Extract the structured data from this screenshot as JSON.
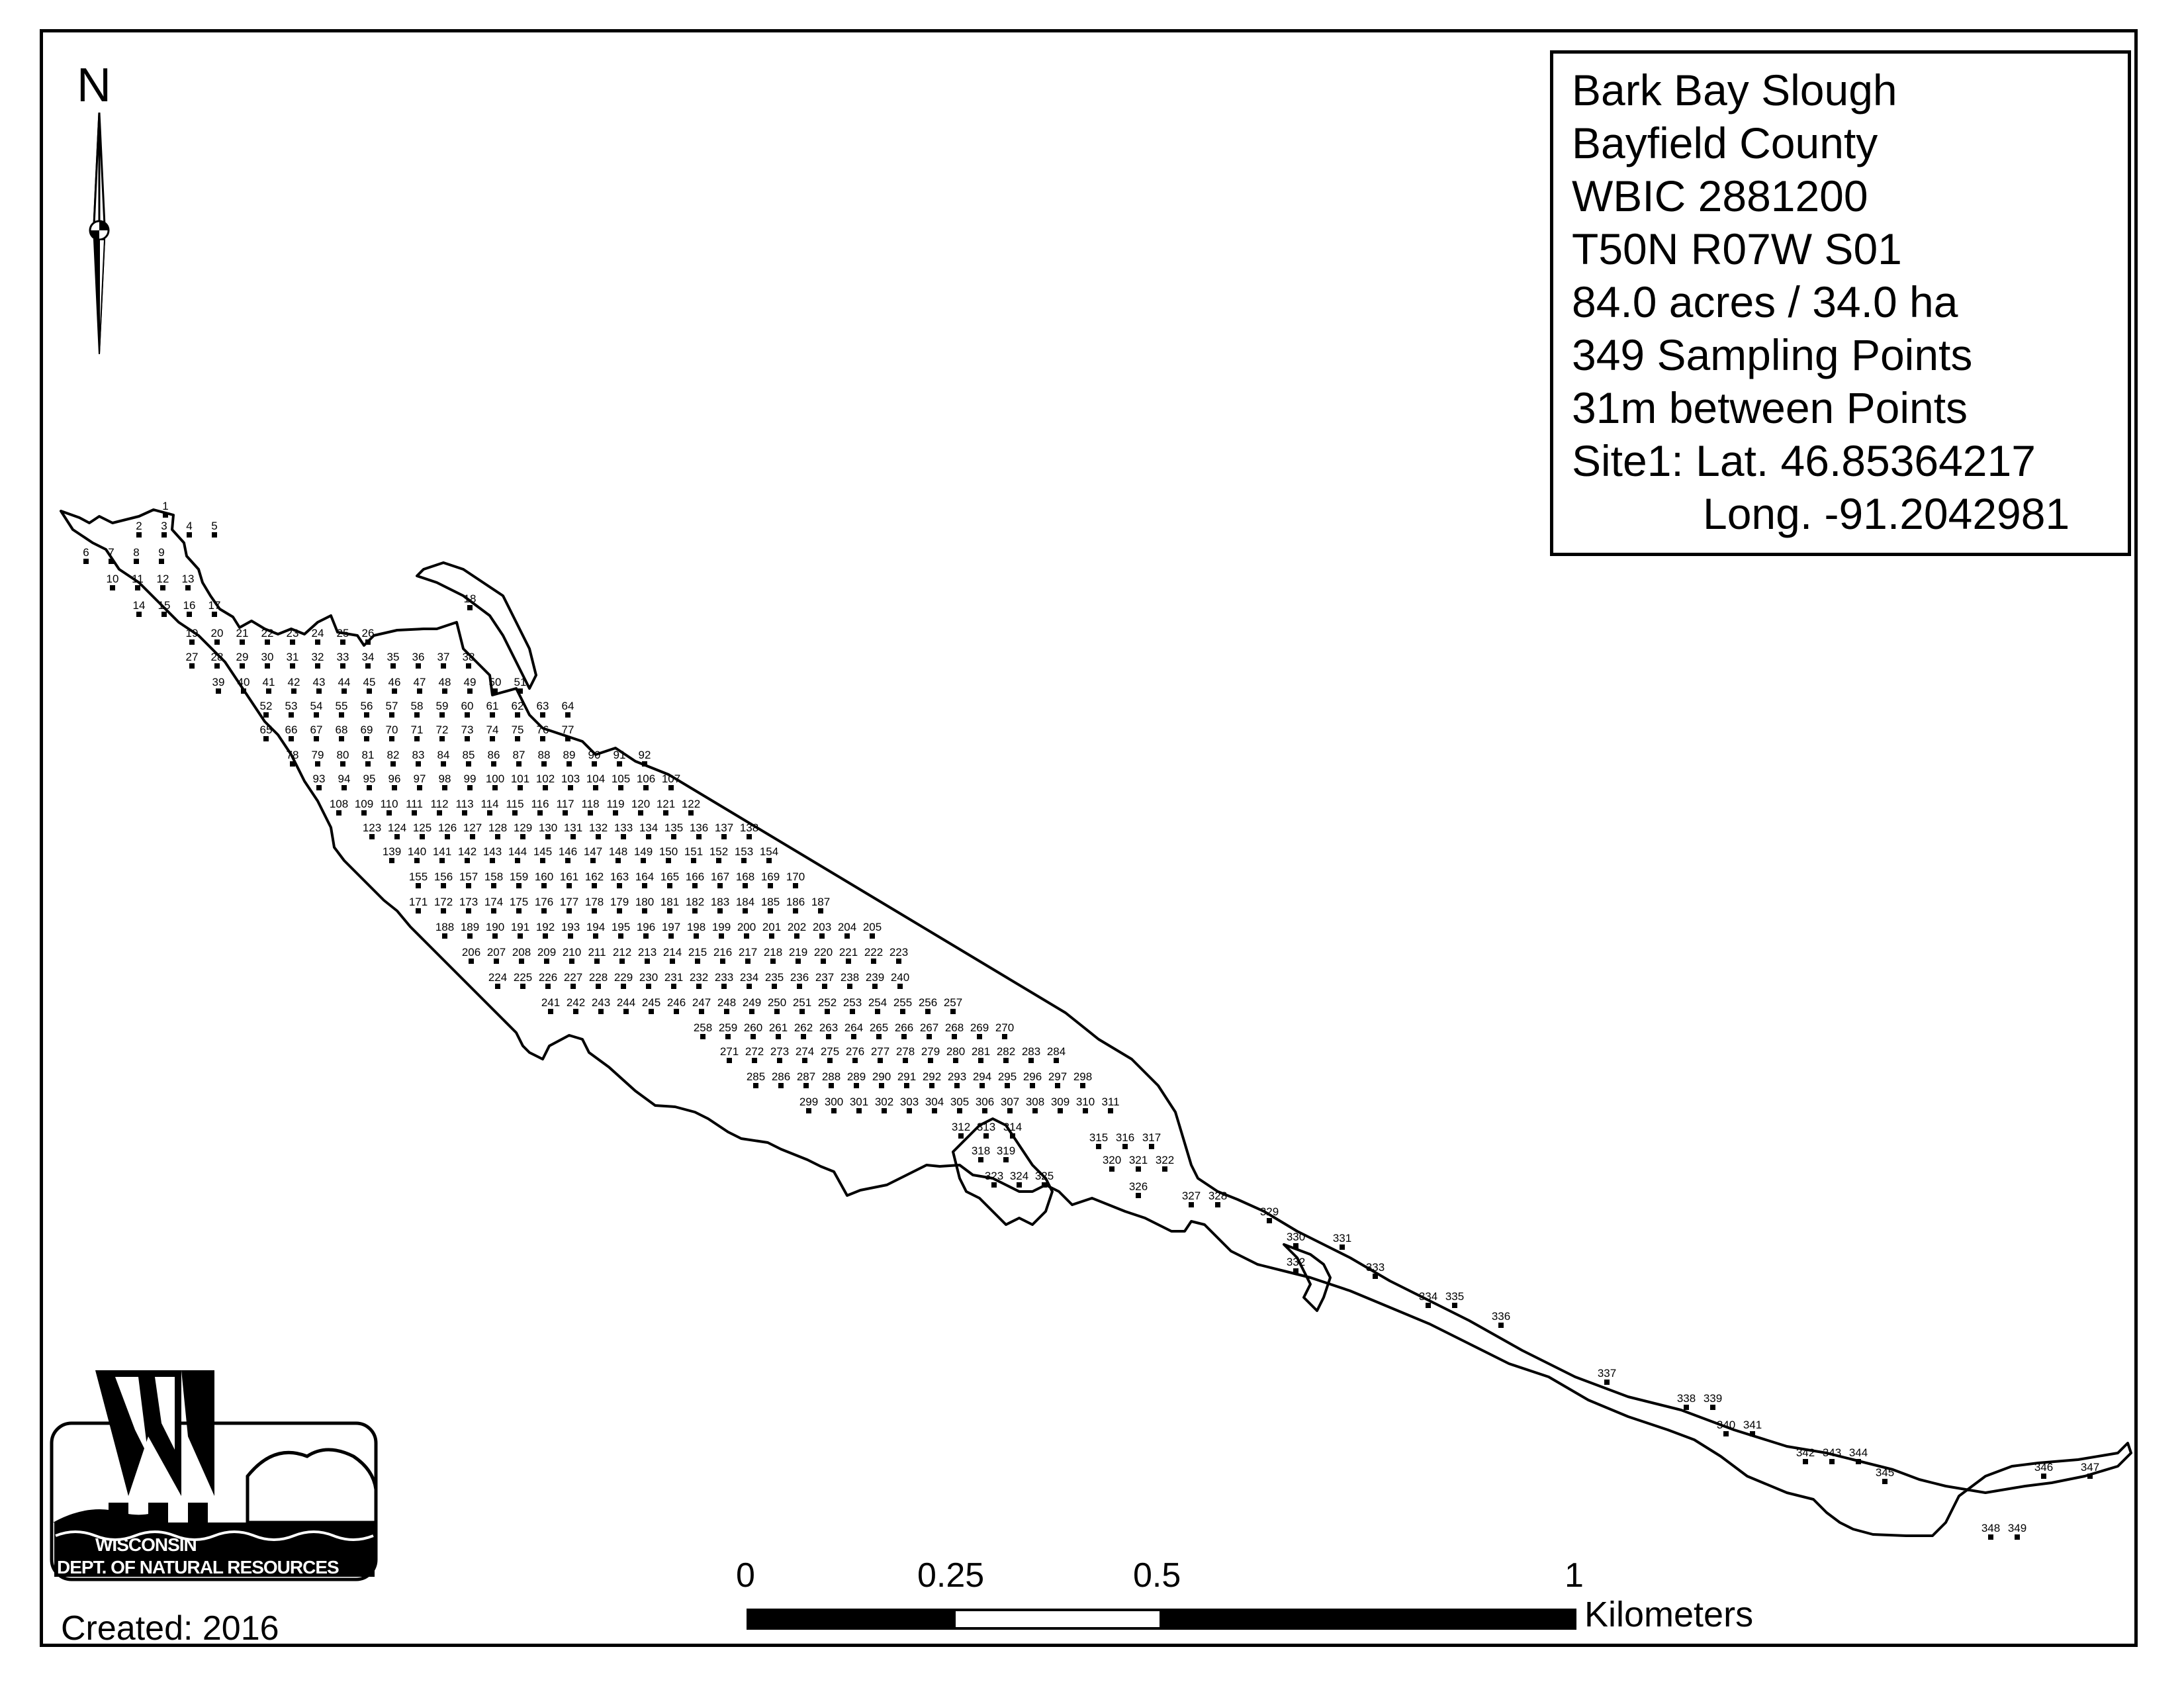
{
  "info_box": {
    "lines": [
      "Bark Bay Slough",
      "Bayfield County",
      "WBIC 2881200",
      "T50N R07W S01",
      "84.0 acres / 34.0 ha",
      "349 Sampling Points",
      "31m between Points",
      "Site1: Lat. 46.85364217",
      "Long. -91.2042981"
    ]
  },
  "north_arrow": {
    "letter": "N"
  },
  "scale_bar": {
    "labels": [
      "0",
      "0.25",
      "0.5",
      "1"
    ],
    "unit": "Kilometers"
  },
  "logo": {
    "line1": "WISCONSIN",
    "line2": "DEPT. OF NATURAL RESOURCES"
  },
  "created": "Created: 2016",
  "sampling_points": {
    "count": 349,
    "rows": [
      [
        1
      ],
      [
        2,
        3,
        4,
        5
      ],
      [
        6,
        7,
        8,
        9
      ],
      [
        10,
        11,
        12,
        13
      ],
      [
        14,
        15,
        16,
        17
      ],
      [
        18
      ],
      [
        19,
        20,
        21,
        22,
        23,
        24,
        25,
        26
      ],
      [
        27,
        28,
        29,
        30,
        31,
        32,
        33,
        34,
        35,
        36,
        37,
        38
      ],
      [
        39,
        40,
        41,
        42,
        43,
        44,
        45,
        46,
        47,
        48,
        49,
        50,
        51
      ],
      [
        52,
        53,
        54,
        55,
        56,
        57,
        58,
        59,
        60,
        61,
        62,
        63,
        64
      ],
      [
        65,
        66,
        67,
        68,
        69,
        70,
        71,
        72,
        73,
        74,
        75,
        76,
        77
      ],
      [
        78,
        79,
        80,
        81,
        82,
        83,
        84,
        85,
        86,
        87,
        88,
        89,
        90,
        91,
        92
      ],
      [
        93,
        94,
        95,
        96,
        97,
        98,
        99,
        100,
        101,
        102,
        103,
        104,
        105,
        106,
        107
      ],
      [
        108,
        109,
        110,
        111,
        112,
        113,
        114,
        115,
        116,
        117,
        118,
        119,
        120,
        121,
        122
      ],
      [
        123,
        124,
        125,
        126,
        127,
        128,
        129,
        130,
        131,
        132,
        133,
        134,
        135,
        136,
        137,
        138
      ],
      [
        139,
        140,
        141,
        142,
        143,
        144,
        145,
        146,
        147,
        148,
        149,
        150,
        151,
        152,
        153,
        154
      ],
      [
        155,
        156,
        157,
        158,
        159,
        160,
        161,
        162,
        163,
        164,
        165,
        166,
        167,
        168,
        169,
        170
      ],
      [
        171,
        172,
        173,
        174,
        175,
        176,
        177,
        178,
        179,
        180,
        181,
        182,
        183,
        184,
        185,
        186,
        187
      ],
      [
        188,
        189,
        190,
        191,
        192,
        193,
        194,
        195,
        196,
        197,
        198,
        199,
        200,
        201,
        202,
        203,
        204,
        205
      ],
      [
        206,
        207,
        208,
        209,
        210,
        211,
        212,
        213,
        214,
        215,
        216,
        217,
        218,
        219,
        220,
        221,
        222,
        223
      ],
      [
        224,
        225,
        226,
        227,
        228,
        229,
        230,
        231,
        232,
        233,
        234,
        235,
        236,
        237,
        238,
        239,
        240
      ],
      [
        241,
        242,
        243,
        244,
        245,
        246,
        247,
        248,
        249,
        250,
        251,
        252,
        253,
        254,
        255,
        256,
        257
      ],
      [
        258,
        259,
        260,
        261,
        262,
        263,
        264,
        265,
        266,
        267,
        268,
        269,
        270
      ],
      [
        271,
        272,
        273,
        274,
        275,
        276,
        277,
        278,
        279,
        280,
        281,
        282,
        283,
        284
      ],
      [
        285,
        286,
        287,
        288,
        289,
        290,
        291,
        292,
        293,
        294,
        295,
        296,
        297,
        298
      ],
      [
        299,
        300,
        301,
        302,
        303,
        304,
        305,
        306,
        307,
        308,
        309,
        310,
        311
      ],
      [
        312,
        313,
        314,
        315,
        316,
        317
      ],
      [
        318,
        319,
        320,
        321,
        322
      ],
      [
        323,
        324,
        325,
        326,
        327,
        328
      ],
      [
        329,
        330,
        331
      ],
      [
        332,
        333
      ],
      [
        334,
        335
      ],
      [
        336
      ],
      [
        337
      ],
      [
        338,
        339
      ],
      [
        340,
        341
      ],
      [
        342,
        343,
        344
      ],
      [
        345,
        346,
        347
      ],
      [
        348,
        349
      ]
    ]
  }
}
